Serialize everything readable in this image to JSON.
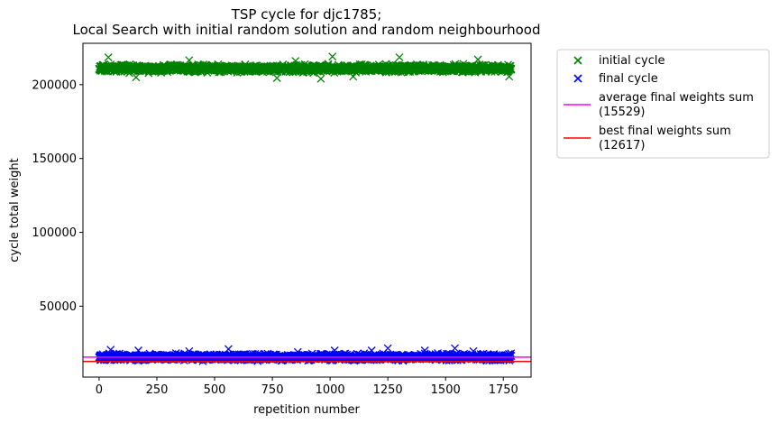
{
  "chart_data": {
    "type": "scatter",
    "title_lines": [
      "TSP cycle for djc1785;",
      "Local Search with initial random solution and random neighbourhood"
    ],
    "xlabel": "repetition number",
    "ylabel": "cycle total weight",
    "xlim": [
      -70,
      1870
    ],
    "ylim": [
      2000,
      228000
    ],
    "xticks": [
      0,
      250,
      500,
      750,
      1000,
      1250,
      1500,
      1750
    ],
    "yticks": [
      50000,
      100000,
      150000,
      200000
    ],
    "n_points": 1785,
    "series": [
      {
        "name": "initial cycle",
        "marker": "x",
        "color": "#008000",
        "typical_range": [
          207500,
          214500
        ],
        "outliers": [
          {
            "x": 40,
            "y": 218500
          },
          {
            "x": 160,
            "y": 205000
          },
          {
            "x": 390,
            "y": 216500
          },
          {
            "x": 770,
            "y": 204500
          },
          {
            "x": 850,
            "y": 216000
          },
          {
            "x": 960,
            "y": 204000
          },
          {
            "x": 1010,
            "y": 219000
          },
          {
            "x": 1100,
            "y": 205500
          },
          {
            "x": 1300,
            "y": 218500
          },
          {
            "x": 1640,
            "y": 217000
          },
          {
            "x": 1775,
            "y": 205500
          }
        ]
      },
      {
        "name": "final cycle",
        "marker": "x",
        "color": "#0000ff",
        "typical_range": [
          12500,
          18500
        ],
        "outliers": [
          {
            "x": 50,
            "y": 20500
          },
          {
            "x": 170,
            "y": 20000
          },
          {
            "x": 390,
            "y": 19500
          },
          {
            "x": 560,
            "y": 21000
          },
          {
            "x": 860,
            "y": 19000
          },
          {
            "x": 1020,
            "y": 20000
          },
          {
            "x": 1180,
            "y": 20000
          },
          {
            "x": 1250,
            "y": 21500
          },
          {
            "x": 1410,
            "y": 20000
          },
          {
            "x": 1540,
            "y": 21500
          },
          {
            "x": 1620,
            "y": 19500
          }
        ]
      }
    ],
    "hlines": [
      {
        "name": "average final weights sum",
        "sub": "(15529)",
        "y": 15529,
        "color": "#ff00ff"
      },
      {
        "name": "best final weights sum",
        "sub": "(12617)",
        "y": 12617,
        "color": "#ff0000"
      }
    ],
    "legend_position": "outside-right-top",
    "grid": false
  }
}
